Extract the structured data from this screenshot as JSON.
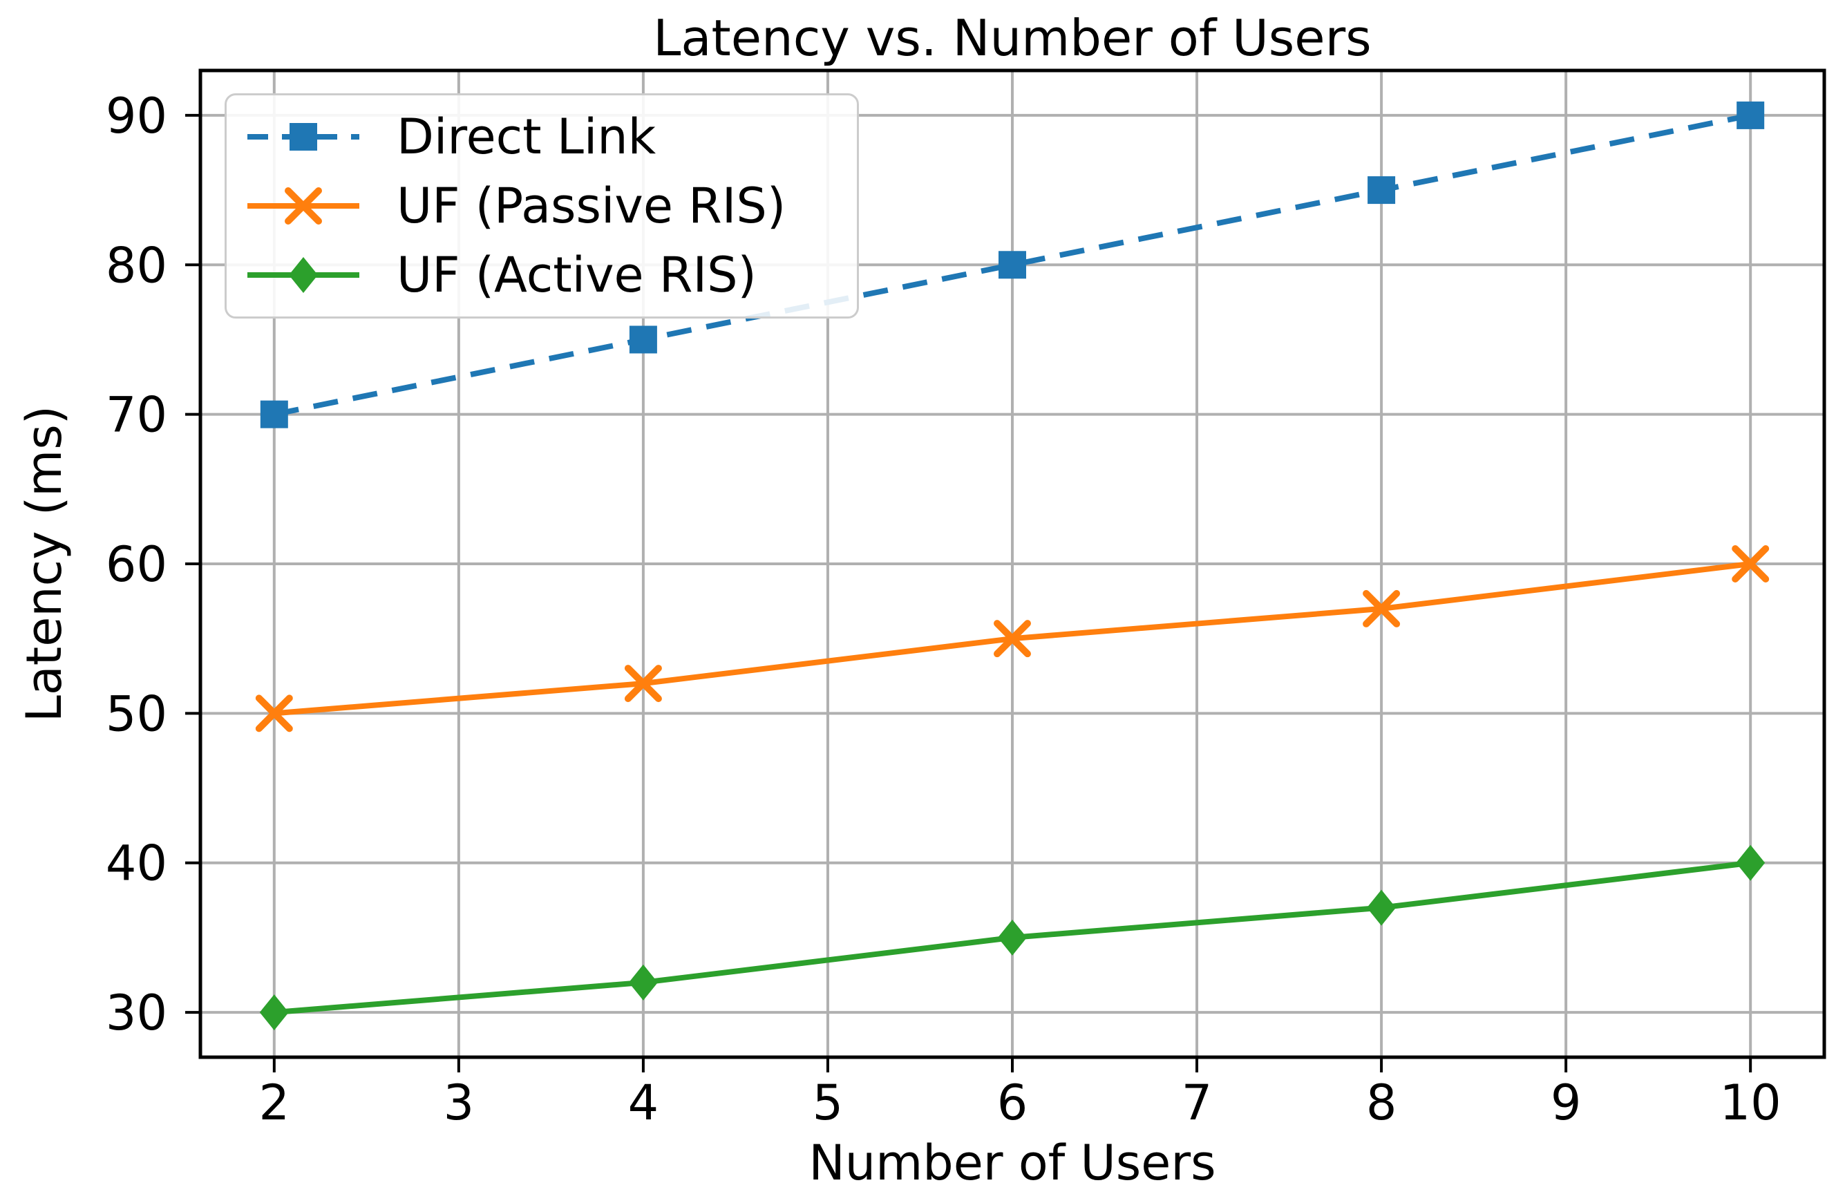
{
  "chart_data": {
    "type": "line",
    "title": "Latency vs. Number of Users",
    "xlabel": "Number of Users",
    "ylabel": "Latency (ms)",
    "x": [
      2,
      4,
      6,
      8,
      10
    ],
    "series": [
      {
        "name": "Direct Link",
        "values": [
          70,
          75,
          80,
          85,
          90
        ],
        "color": "#1f77b4",
        "line_style": "dashed",
        "marker": "square"
      },
      {
        "name": "UF (Passive RIS)",
        "values": [
          50,
          52,
          55,
          57,
          60
        ],
        "color": "#ff7f0e",
        "line_style": "solid",
        "marker": "x"
      },
      {
        "name": "UF (Active RIS)",
        "values": [
          30,
          32,
          35,
          37,
          40
        ],
        "color": "#2ca02c",
        "line_style": "solid",
        "marker": "diamond"
      }
    ],
    "x_ticks": [
      2,
      3,
      4,
      5,
      6,
      7,
      8,
      9,
      10
    ],
    "y_ticks": [
      30,
      40,
      50,
      60,
      70,
      80,
      90
    ],
    "xlim": [
      1.6,
      10.4
    ],
    "ylim": [
      27,
      93
    ],
    "grid": true,
    "legend_position": "upper left"
  },
  "colors": {
    "background": "#ffffff",
    "grid": "#b0b0b0",
    "spine": "#000000",
    "tick_label": "#000000",
    "legend_border": "#cccccc"
  }
}
